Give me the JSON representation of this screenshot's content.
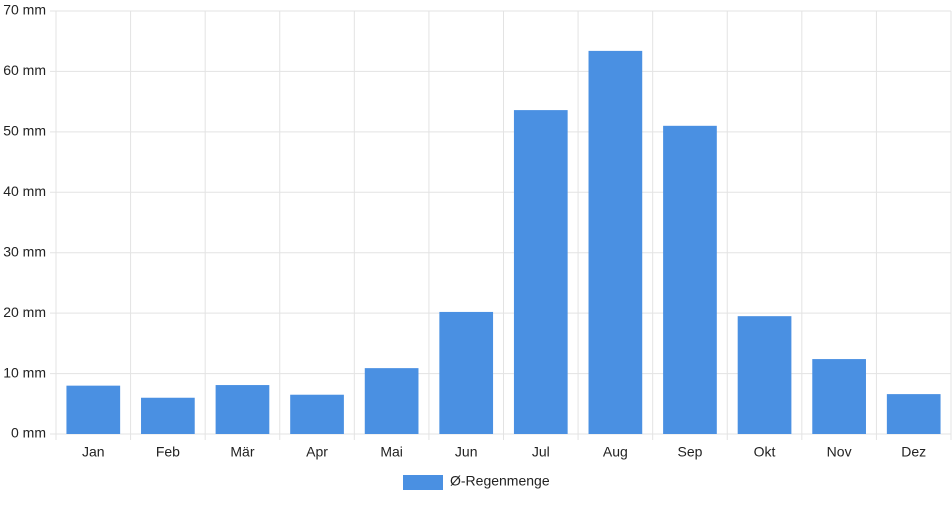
{
  "chart_data": {
    "type": "bar",
    "categories": [
      "Jan",
      "Feb",
      "Mär",
      "Apr",
      "Mai",
      "Jun",
      "Jul",
      "Aug",
      "Sep",
      "Okt",
      "Nov",
      "Dez"
    ],
    "series": [
      {
        "name": "Ø-Regenmenge",
        "color": "#4a90e2",
        "values": [
          8,
          6,
          8.1,
          6.5,
          10.9,
          20.2,
          53.6,
          63.4,
          51,
          19.5,
          12.4,
          6.6
        ]
      }
    ],
    "ylim": [
      0,
      70
    ],
    "yticks": [
      {
        "value": 0,
        "label": "0 mm"
      },
      {
        "value": 10,
        "label": "10 mm"
      },
      {
        "value": 20,
        "label": "20 mm"
      },
      {
        "value": 30,
        "label": "30 mm"
      },
      {
        "value": 40,
        "label": "40 mm"
      },
      {
        "value": 50,
        "label": "50 mm"
      },
      {
        "value": 60,
        "label": "60 mm"
      },
      {
        "value": 70,
        "label": "70 mm"
      }
    ],
    "grid": true,
    "legend": "bottom"
  }
}
